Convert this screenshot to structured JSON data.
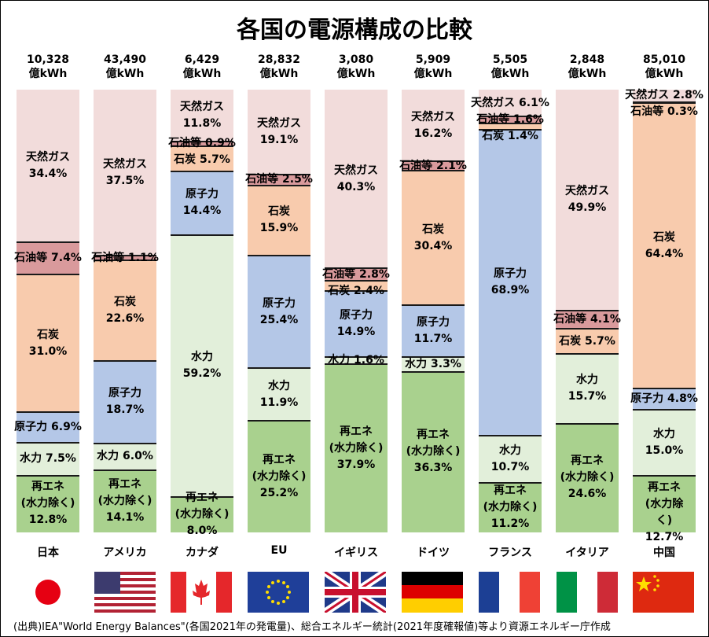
{
  "chart_data": {
    "type": "stacked-bar-100",
    "title": "各国の電源構成の比較",
    "categories": [
      "日本",
      "アメリカ",
      "カナダ",
      "EU",
      "イギリス",
      "ドイツ",
      "フランス",
      "イタリア",
      "中国"
    ],
    "totals": [
      {
        "value": 10328,
        "label": "10,328"
      },
      {
        "value": 43490,
        "label": "43,490"
      },
      {
        "value": 6429,
        "label": "6,429"
      },
      {
        "value": 28832,
        "label": "28,832"
      },
      {
        "value": 3080,
        "label": "3,080"
      },
      {
        "value": 5909,
        "label": "5,909"
      },
      {
        "value": 5505,
        "label": "5,505"
      },
      {
        "value": 2848,
        "label": "2,848"
      },
      {
        "value": 85010,
        "label": "85,010"
      }
    ],
    "total_unit": "億kWh",
    "series": [
      {
        "name": "再エネ\n(水力除く)",
        "color": "#a9d18e",
        "values": [
          12.8,
          14.1,
          8.0,
          25.2,
          37.9,
          36.3,
          11.2,
          24.6,
          12.7
        ],
        "value_labels": [
          "12.8%",
          "14.1%",
          "8.0%",
          "25.2%",
          "37.9%",
          "36.3%",
          "11.2%",
          "24.6%",
          "12.7%"
        ]
      },
      {
        "name": "水力",
        "color": "#e2efda",
        "values": [
          7.5,
          6.0,
          59.2,
          11.9,
          1.6,
          3.3,
          10.7,
          15.7,
          15.0
        ],
        "value_labels": [
          "7.5%",
          "6.0%",
          "59.2%",
          "11.9%",
          "1.6%",
          "3.3%",
          "10.7%",
          "15.7%",
          "15.0%"
        ]
      },
      {
        "name": "原子力",
        "color": "#b4c7e7",
        "values": [
          6.9,
          18.7,
          14.4,
          25.4,
          14.9,
          11.7,
          68.9,
          null,
          4.8
        ],
        "value_labels": [
          "6.9%",
          "18.7%",
          "14.4%",
          "25.4%",
          "14.9%",
          "11.7%",
          "68.9%",
          null,
          "4.8%"
        ]
      },
      {
        "name": "石炭",
        "color": "#f8cbad",
        "values": [
          31.0,
          22.6,
          5.7,
          15.9,
          2.4,
          30.4,
          1.4,
          5.7,
          64.4
        ],
        "value_labels": [
          "31.0%",
          "22.6%",
          "5.7%",
          "15.9%",
          "2.4%",
          "30.4%",
          "1.4%",
          "5.7%",
          "64.4%"
        ]
      },
      {
        "name": "石油等",
        "color": "#d99a9c",
        "values": [
          7.4,
          1.1,
          0.9,
          2.5,
          2.8,
          2.1,
          1.6,
          4.1,
          0.3
        ],
        "value_labels": [
          "7.4%",
          "1.1%",
          "0.9%",
          "2.5%",
          "2.8%",
          "2.1%",
          "1.6%",
          "4.1%",
          "0.3%"
        ]
      },
      {
        "name": "天然ガス",
        "color": "#f2dcdb",
        "values": [
          34.4,
          37.5,
          11.8,
          19.1,
          40.3,
          16.2,
          6.1,
          49.9,
          2.8
        ],
        "value_labels": [
          "34.4%",
          "37.5%",
          "11.8%",
          "19.1%",
          "40.3%",
          "16.2%",
          "6.1%",
          "49.9%",
          "2.8%"
        ]
      }
    ],
    "source": "(出典)IEA\"World Energy Balances\"(各国2021年の発電量)、総合エネルギー統計(2021年度確報値)等より資源エネルギー庁作成"
  }
}
